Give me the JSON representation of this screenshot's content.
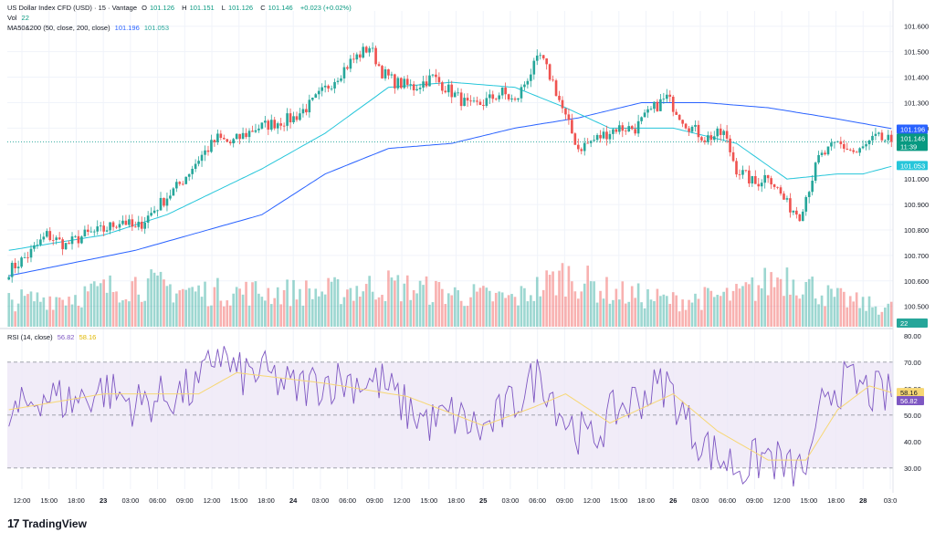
{
  "header": {
    "symbol": "US Dollar Index CFD (USD) · 15 · Vantage",
    "ohlc": [
      {
        "label": "O",
        "value": "101.126"
      },
      {
        "label": "H",
        "value": "101.151"
      },
      {
        "label": "L",
        "value": "101.126"
      },
      {
        "label": "C",
        "value": "101.146"
      }
    ],
    "change": "+0.023 (+0.02%)",
    "vol_label": "Vol",
    "vol_value": "22",
    "ma_label": "MA50&200 (50, close, 200, close)",
    "ma50_value": "101.196",
    "ma200_value": "101.053",
    "rsi_label": "RSI (14, close)",
    "rsi_value": "56.82",
    "rsi_ma_value": "58.16"
  },
  "price_axis": {
    "ticks": [
      "101.600",
      "101.500",
      "101.400",
      "101.300",
      "101.200",
      "101.000",
      "100.900",
      "100.800",
      "100.700",
      "100.600",
      "100.500"
    ],
    "labels": [
      {
        "text": "101.196",
        "color": "#2962ff"
      },
      {
        "text": "101.146",
        "color": "#089981"
      },
      {
        "text": "11:39",
        "color": "#089981"
      },
      {
        "text": "101.053",
        "color": "#26c6da"
      },
      {
        "text": "22",
        "color": "#26a69a"
      }
    ]
  },
  "rsi_axis": {
    "ticks": [
      "80.00",
      "70.00",
      "60.00",
      "50.00",
      "40.00",
      "30.00"
    ],
    "labels": [
      {
        "text": "58.16",
        "color": "#f7d774"
      },
      {
        "text": "56.82",
        "color": "#7e57c2"
      }
    ]
  },
  "time_axis": {
    "labels": [
      "12:00",
      "15:00",
      "18:00",
      "23",
      "03:00",
      "06:00",
      "09:00",
      "12:00",
      "15:00",
      "18:00",
      "24",
      "03:00",
      "06:00",
      "09:00",
      "12:00",
      "15:00",
      "18:00",
      "25",
      "03:00",
      "06:00",
      "09:00",
      "12:00",
      "15:00",
      "18:00",
      "26",
      "03:00",
      "06:00",
      "09:00",
      "12:00",
      "15:00",
      "18:00",
      "28",
      "03:0"
    ]
  },
  "colors": {
    "up": "#26a69a",
    "down": "#ef5350",
    "ma50": "#2962ff",
    "ma200": "#26c6da",
    "rsi": "#7e57c2",
    "rsi_ma": "#f7d774",
    "rsi_band": "#ede7f6"
  },
  "brand": "TradingView",
  "chart_data": {
    "type": "candlestick",
    "interval": "15",
    "y_range": [
      100.42,
      101.66
    ],
    "rsi_range": [
      22,
      82
    ],
    "rsi_band": [
      30,
      70
    ],
    "current_price": 101.146,
    "price_anchors": [
      [
        0,
        100.64
      ],
      [
        6,
        100.7
      ],
      [
        12,
        100.78
      ],
      [
        18,
        100.74
      ],
      [
        24,
        100.78
      ],
      [
        30,
        100.8
      ],
      [
        36,
        100.84
      ],
      [
        40,
        100.8
      ],
      [
        46,
        100.88
      ],
      [
        54,
        100.98
      ],
      [
        60,
        101.08
      ],
      [
        66,
        101.16
      ],
      [
        70,
        101.14
      ],
      [
        78,
        101.2
      ],
      [
        84,
        101.22
      ],
      [
        90,
        101.24
      ],
      [
        96,
        101.3
      ],
      [
        102,
        101.38
      ],
      [
        108,
        101.46
      ],
      [
        114,
        101.52
      ],
      [
        118,
        101.42
      ],
      [
        122,
        101.38
      ],
      [
        128,
        101.36
      ],
      [
        134,
        101.4
      ],
      [
        140,
        101.34
      ],
      [
        146,
        101.28
      ],
      [
        150,
        101.3
      ],
      [
        156,
        101.34
      ],
      [
        160,
        101.3
      ],
      [
        164,
        101.4
      ],
      [
        168,
        101.48
      ],
      [
        172,
        101.38
      ],
      [
        176,
        101.24
      ],
      [
        180,
        101.12
      ],
      [
        186,
        101.16
      ],
      [
        192,
        101.2
      ],
      [
        198,
        101.2
      ],
      [
        204,
        101.28
      ],
      [
        208,
        101.32
      ],
      [
        214,
        101.22
      ],
      [
        220,
        101.16
      ],
      [
        226,
        101.18
      ],
      [
        230,
        101.04
      ],
      [
        236,
        100.98
      ],
      [
        240,
        101.02
      ],
      [
        246,
        100.9
      ],
      [
        250,
        100.86
      ],
      [
        256,
        101.08
      ],
      [
        262,
        101.14
      ],
      [
        268,
        101.1
      ],
      [
        274,
        101.16
      ],
      [
        280,
        101.146
      ]
    ],
    "ma50_anchors": [
      [
        0,
        100.62
      ],
      [
        40,
        100.72
      ],
      [
        80,
        100.86
      ],
      [
        100,
        101.02
      ],
      [
        120,
        101.12
      ],
      [
        140,
        101.14
      ],
      [
        160,
        101.2
      ],
      [
        180,
        101.24
      ],
      [
        200,
        101.3
      ],
      [
        220,
        101.3
      ],
      [
        240,
        101.28
      ],
      [
        260,
        101.24
      ],
      [
        280,
        101.196
      ]
    ],
    "ma200_anchors": [
      [
        0,
        100.72
      ],
      [
        30,
        100.78
      ],
      [
        50,
        100.86
      ],
      [
        80,
        101.04
      ],
      [
        100,
        101.18
      ],
      [
        120,
        101.36
      ],
      [
        140,
        101.38
      ],
      [
        160,
        101.36
      ],
      [
        176,
        101.28
      ],
      [
        190,
        101.2
      ],
      [
        210,
        101.2
      ],
      [
        230,
        101.14
      ],
      [
        246,
        101.0
      ],
      [
        262,
        101.02
      ],
      [
        270,
        101.02
      ],
      [
        280,
        101.053
      ]
    ],
    "rsi_anchors": [
      [
        0,
        48
      ],
      [
        10,
        58
      ],
      [
        20,
        55
      ],
      [
        30,
        60
      ],
      [
        40,
        54
      ],
      [
        50,
        57
      ],
      [
        60,
        60
      ],
      [
        66,
        75
      ],
      [
        72,
        65
      ],
      [
        80,
        66
      ],
      [
        90,
        60
      ],
      [
        100,
        63
      ],
      [
        110,
        63
      ],
      [
        118,
        62
      ],
      [
        126,
        52
      ],
      [
        134,
        47
      ],
      [
        140,
        50
      ],
      [
        150,
        44
      ],
      [
        160,
        55
      ],
      [
        168,
        66
      ],
      [
        176,
        48
      ],
      [
        184,
        40
      ],
      [
        192,
        52
      ],
      [
        200,
        57
      ],
      [
        208,
        62
      ],
      [
        216,
        44
      ],
      [
        224,
        34
      ],
      [
        232,
        30
      ],
      [
        240,
        35
      ],
      [
        248,
        28
      ],
      [
        254,
        32
      ],
      [
        258,
        60
      ],
      [
        266,
        62
      ],
      [
        274,
        58
      ],
      [
        280,
        56.82
      ]
    ],
    "rsi_ma_anchors": [
      [
        0,
        52
      ],
      [
        30,
        58
      ],
      [
        60,
        58
      ],
      [
        72,
        66
      ],
      [
        100,
        62
      ],
      [
        126,
        57
      ],
      [
        150,
        46
      ],
      [
        166,
        53
      ],
      [
        176,
        58
      ],
      [
        190,
        47
      ],
      [
        210,
        58
      ],
      [
        224,
        44
      ],
      [
        240,
        33
      ],
      [
        252,
        33
      ],
      [
        262,
        52
      ],
      [
        272,
        61
      ],
      [
        280,
        58.16
      ]
    ],
    "volume_anchors": [
      [
        0,
        30
      ],
      [
        20,
        35
      ],
      [
        40,
        50
      ],
      [
        60,
        40
      ],
      [
        80,
        40
      ],
      [
        100,
        40
      ],
      [
        120,
        48
      ],
      [
        140,
        38
      ],
      [
        160,
        32
      ],
      [
        176,
        60
      ],
      [
        190,
        40
      ],
      [
        210,
        30
      ],
      [
        230,
        36
      ],
      [
        246,
        60
      ],
      [
        260,
        34
      ],
      [
        276,
        22
      ],
      [
        280,
        22
      ]
    ],
    "bar_count": 280
  }
}
